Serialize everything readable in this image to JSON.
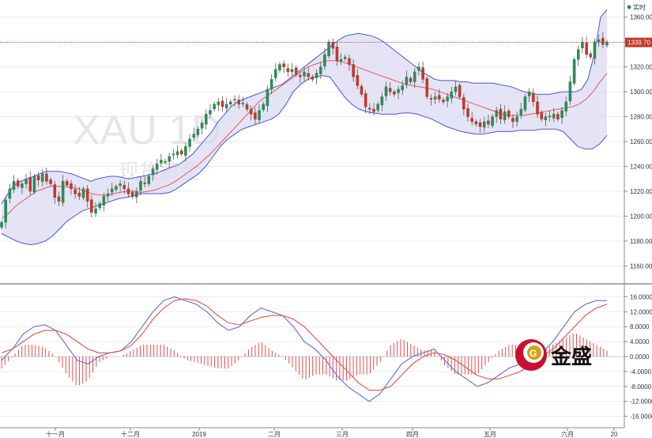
{
  "chart_data": [
    {
      "type": "candlestick",
      "symbol_watermark": "XAU 1D",
      "watermark_sub": "现货黄金",
      "realtime_label": "实时",
      "ylim": [
        1150,
        1370
      ],
      "yticks": [
        "1360.00",
        "1340.00",
        "1320.00",
        "1300.00",
        "1280.00",
        "1260.00",
        "1240.00",
        "1220.00",
        "1200.00",
        "1180.00",
        "1160.00"
      ],
      "ytick_values": [
        1360,
        1340,
        1320,
        1300,
        1280,
        1260,
        1240,
        1220,
        1200,
        1180,
        1160
      ],
      "current_price": 1339.7,
      "current_price_label": "1339.70",
      "xtick_labels": [
        "十一月",
        "十二月",
        "2019",
        "二月",
        "三月",
        "四月",
        "五月",
        "六月",
        "20"
      ],
      "closes": [
        1195,
        1213,
        1222,
        1228,
        1224,
        1226,
        1230,
        1220,
        1232,
        1229,
        1234,
        1228,
        1226,
        1215,
        1212,
        1228,
        1225,
        1222,
        1218,
        1216,
        1222,
        1212,
        1203,
        1206,
        1210,
        1216,
        1218,
        1222,
        1224,
        1226,
        1222,
        1218,
        1216,
        1220,
        1228,
        1226,
        1232,
        1238,
        1242,
        1245,
        1244,
        1248,
        1250,
        1252,
        1250,
        1256,
        1262,
        1266,
        1270,
        1275,
        1282,
        1285,
        1290,
        1292,
        1288,
        1290,
        1292,
        1294,
        1290,
        1291,
        1286,
        1282,
        1278,
        1285,
        1290,
        1302,
        1310,
        1318,
        1322,
        1320,
        1316,
        1318,
        1314,
        1312,
        1316,
        1312,
        1310,
        1315,
        1320,
        1330,
        1340,
        1335,
        1325,
        1326,
        1328,
        1322,
        1312,
        1305,
        1298,
        1288,
        1286,
        1284,
        1290,
        1296,
        1304,
        1300,
        1298,
        1302,
        1305,
        1312,
        1308,
        1316,
        1320,
        1310,
        1296,
        1294,
        1296,
        1294,
        1292,
        1296,
        1300,
        1304,
        1296,
        1286,
        1280,
        1276,
        1274,
        1272,
        1276,
        1274,
        1280,
        1285,
        1278,
        1284,
        1280,
        1276,
        1280,
        1286,
        1296,
        1300,
        1292,
        1282,
        1278,
        1280,
        1280,
        1282,
        1278,
        1285,
        1292,
        1308,
        1326,
        1334,
        1340,
        1330,
        1328,
        1340,
        1342,
        1338,
        1340
      ],
      "bollinger_upper": [
        1210,
        1218,
        1225,
        1228,
        1230,
        1232,
        1234,
        1236,
        1236,
        1236,
        1235,
        1234,
        1232,
        1230,
        1228,
        1230,
        1231,
        1232,
        1232,
        1231,
        1230,
        1231,
        1232,
        1233,
        1234,
        1236,
        1238,
        1240,
        1242,
        1246,
        1250,
        1256,
        1262,
        1268,
        1276,
        1282,
        1288,
        1292,
        1294,
        1296,
        1298,
        1300,
        1302,
        1304,
        1306,
        1310,
        1314,
        1318,
        1322,
        1326,
        1330,
        1334,
        1338,
        1342,
        1345,
        1346,
        1347,
        1346,
        1345,
        1343,
        1340,
        1336,
        1332,
        1328,
        1324,
        1320,
        1316,
        1313,
        1310,
        1309,
        1309,
        1309,
        1308,
        1308,
        1307,
        1307,
        1307,
        1307,
        1306,
        1305,
        1304,
        1302,
        1300,
        1299,
        1298,
        1298,
        1298,
        1299,
        1300,
        1300,
        1300,
        1302,
        1310,
        1330,
        1360,
        1366
      ],
      "bollinger_middle": [
        1198,
        1202,
        1208,
        1212,
        1216,
        1220,
        1222,
        1224,
        1224,
        1224,
        1223,
        1222,
        1220,
        1218,
        1217,
        1217,
        1218,
        1219,
        1220,
        1220,
        1219,
        1220,
        1221,
        1223,
        1225,
        1228,
        1232,
        1236,
        1240,
        1245,
        1250,
        1256,
        1262,
        1268,
        1274,
        1280,
        1286,
        1292,
        1296,
        1300,
        1304,
        1308,
        1312,
        1316,
        1320,
        1322,
        1324,
        1325,
        1325,
        1324,
        1322,
        1320,
        1318,
        1316,
        1314,
        1312,
        1310,
        1308,
        1306,
        1305,
        1304,
        1303,
        1302,
        1300,
        1298,
        1296,
        1294,
        1292,
        1290,
        1288,
        1286,
        1284,
        1282,
        1281,
        1281,
        1281,
        1282,
        1283,
        1284,
        1285,
        1286,
        1287,
        1288,
        1290,
        1294,
        1300,
        1308,
        1315
      ],
      "bollinger_lower": [
        1186,
        1183,
        1180,
        1178,
        1177,
        1178,
        1180,
        1184,
        1190,
        1196,
        1200,
        1204,
        1206,
        1208,
        1210,
        1212,
        1214,
        1215,
        1216,
        1218,
        1218,
        1218,
        1218,
        1219,
        1222,
        1226,
        1230,
        1234,
        1240,
        1248,
        1256,
        1262,
        1266,
        1270,
        1272,
        1274,
        1276,
        1278,
        1282,
        1290,
        1300,
        1306,
        1310,
        1312,
        1313,
        1312,
        1304,
        1296,
        1290,
        1286,
        1284,
        1283,
        1282,
        1282,
        1282,
        1283,
        1283,
        1282,
        1280,
        1278,
        1275,
        1272,
        1270,
        1268,
        1267,
        1266,
        1266,
        1267,
        1268,
        1268,
        1268,
        1269,
        1269,
        1269,
        1270,
        1270,
        1270,
        1268,
        1262,
        1256,
        1254,
        1254,
        1258,
        1265
      ]
    },
    {
      "type": "macd",
      "ylim": [
        -18,
        18
      ],
      "yticks": [
        "16.0000",
        "12.0000",
        "8.0000",
        "4.0000",
        "0.0000",
        "-4.0000",
        "-8.0000",
        "-12.0000",
        "-16.0000"
      ],
      "ytick_values": [
        16,
        12,
        8,
        4,
        0,
        -4,
        -8,
        -12,
        -16
      ],
      "dif": [
        -1,
        2,
        6,
        8,
        8.5,
        7,
        3,
        -1,
        -2,
        0,
        1,
        1.5,
        4,
        8,
        12,
        15,
        16,
        15,
        14,
        12,
        9,
        7,
        8,
        11,
        13,
        12,
        11,
        8,
        4,
        2,
        -1,
        -5,
        -8,
        -10,
        -12,
        -10,
        -6,
        -2,
        0,
        1,
        2,
        -1,
        -4,
        -6,
        -8,
        -7,
        -5,
        -3,
        -2,
        0,
        1,
        4,
        8,
        12,
        14,
        15,
        15
      ],
      "dea": [
        1,
        2,
        4,
        6,
        7,
        7,
        6,
        4,
        2,
        1,
        1,
        1.5,
        3,
        6,
        10,
        13,
        15,
        15.5,
        15,
        13.5,
        11,
        9,
        8.5,
        9.5,
        10.5,
        11,
        11,
        10,
        8,
        5,
        2,
        -1,
        -4,
        -7,
        -9,
        -9,
        -8,
        -5,
        -2,
        0,
        1,
        0.5,
        -1,
        -3,
        -5,
        -6,
        -6,
        -5,
        -4,
        -2,
        0,
        2,
        5,
        8,
        11,
        13,
        14
      ]
    }
  ],
  "brand": {
    "name": "金盛",
    "logo_glyph": "G",
    "accent": "#c8102e",
    "gold": "#d4a017"
  },
  "colors": {
    "up": "#2e8b57",
    "down": "#c0392b",
    "band_fill": "#d9d9f2",
    "band_line": "#4a55d9",
    "middle_line": "#e05a5a",
    "dif": "#5b6be0",
    "dea": "#e05050",
    "hist": "#e05050",
    "price_tag": "#c0392b",
    "realtime_dot": "#2e8b57"
  }
}
